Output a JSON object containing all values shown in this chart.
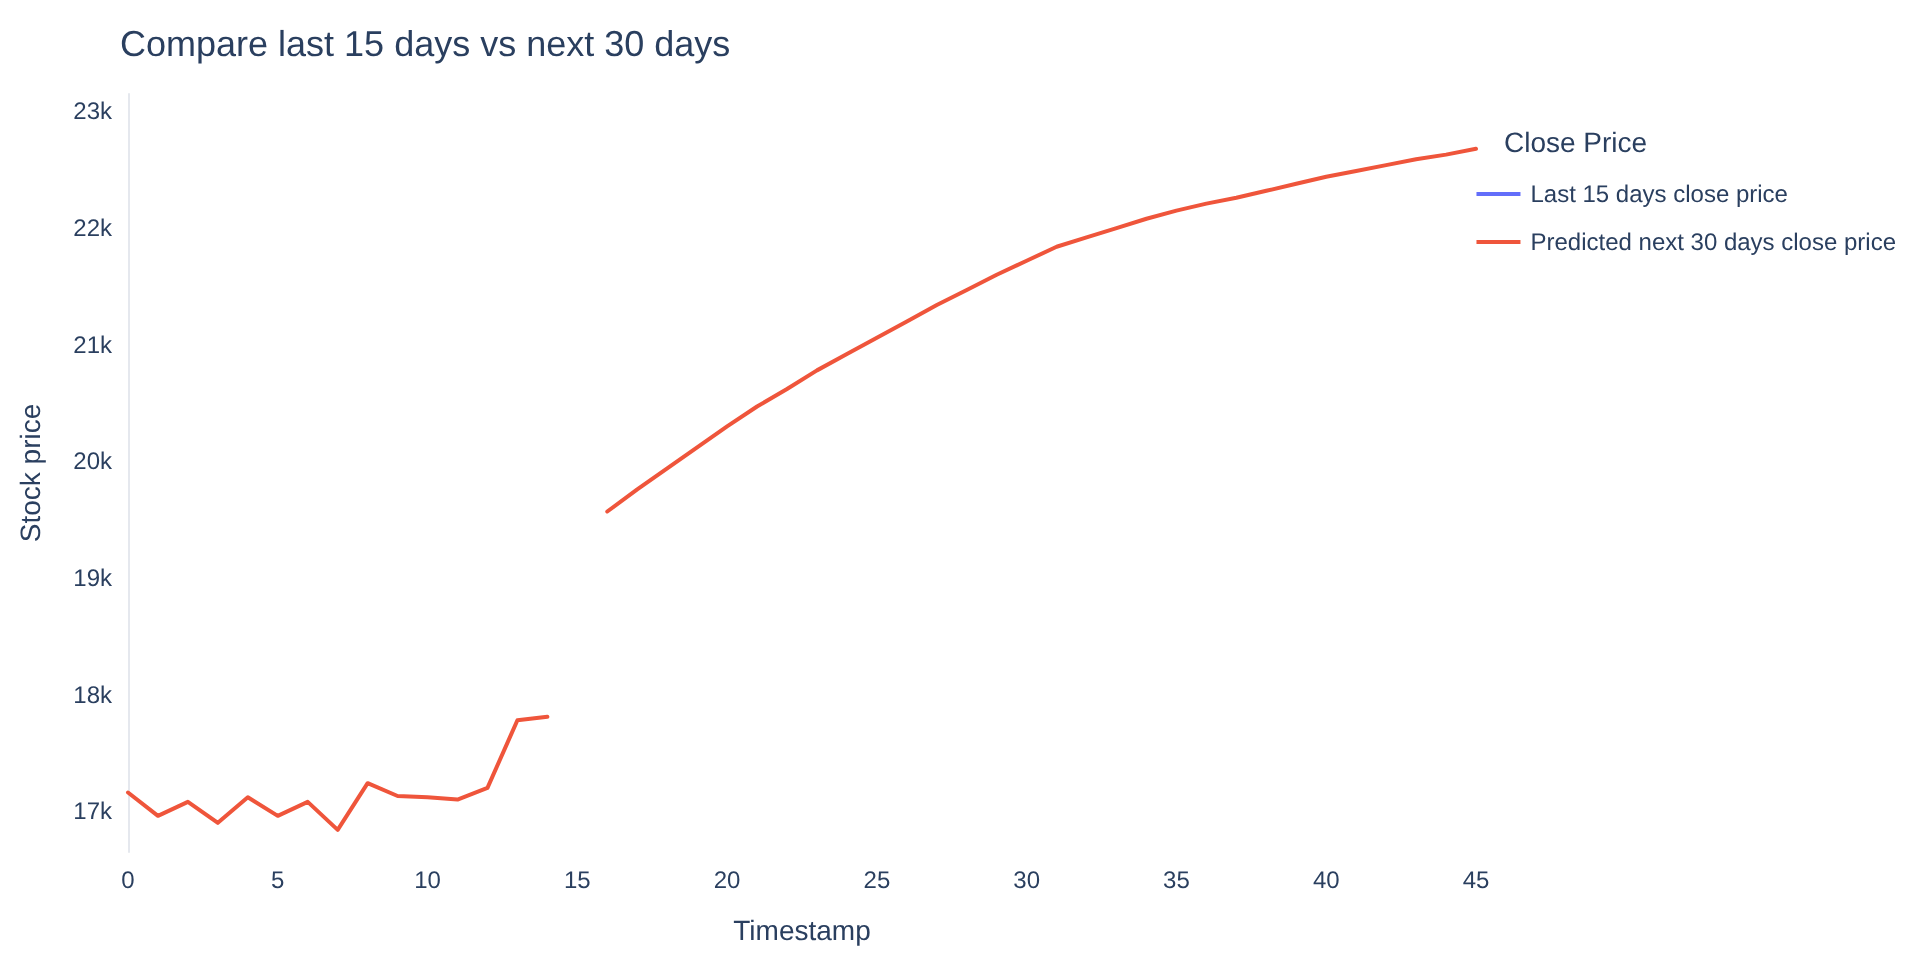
{
  "chart_data": {
    "type": "line",
    "title": "Compare last 15 days vs next 30 days",
    "xlabel": "Timestamp",
    "ylabel": "Stock price",
    "legend_title": "Close Price",
    "x": [
      0,
      1,
      2,
      3,
      4,
      5,
      6,
      7,
      8,
      9,
      10,
      11,
      12,
      13,
      14,
      15,
      16,
      17,
      18,
      19,
      20,
      21,
      22,
      23,
      24,
      25,
      26,
      27,
      28,
      29,
      30,
      31,
      32,
      33,
      34,
      35,
      36,
      37,
      38,
      39,
      40,
      41,
      42,
      43,
      44,
      45
    ],
    "series": [
      {
        "name": "Last 15 days close price",
        "color": "#636efa",
        "values": [
          null,
          null,
          null,
          null,
          null,
          null,
          null,
          null,
          null,
          null,
          null,
          null,
          null,
          null,
          null,
          null,
          null,
          null,
          null,
          null,
          null,
          null,
          null,
          null,
          null,
          null,
          null,
          null,
          null,
          null,
          null,
          null,
          null,
          null,
          null,
          null,
          null,
          null,
          null,
          null,
          null,
          null,
          null,
          null,
          null,
          null
        ]
      },
      {
        "name": "Predicted next 30 days close price",
        "color": "#ef553b",
        "values": [
          17160,
          16960,
          17080,
          16900,
          17120,
          16960,
          17080,
          16840,
          17240,
          17130,
          17120,
          17100,
          17200,
          17780,
          17810,
          null,
          19570,
          19760,
          19940,
          20120,
          20300,
          20470,
          20620,
          20780,
          20920,
          21060,
          21200,
          21340,
          21470,
          21600,
          21720,
          21840,
          21920,
          22000,
          22080,
          22150,
          22210,
          22260,
          22320,
          22380,
          22440,
          22490,
          22540,
          22590,
          22630,
          22680
        ]
      }
    ],
    "xlim": [
      0,
      45
    ],
    "xticks": [
      0,
      5,
      10,
      15,
      20,
      25,
      30,
      35,
      40,
      45
    ],
    "ylim": [
      16650,
      23150
    ],
    "yticks": [
      {
        "value": 17000,
        "label": "17k"
      },
      {
        "value": 18000,
        "label": "18k"
      },
      {
        "value": 19000,
        "label": "19k"
      },
      {
        "value": 20000,
        "label": "20k"
      },
      {
        "value": 21000,
        "label": "21k"
      },
      {
        "value": 22000,
        "label": "22k"
      },
      {
        "value": 23000,
        "label": "23k"
      }
    ],
    "grid": false,
    "legend": "top right",
    "marker": "none",
    "line_style": "solid"
  }
}
